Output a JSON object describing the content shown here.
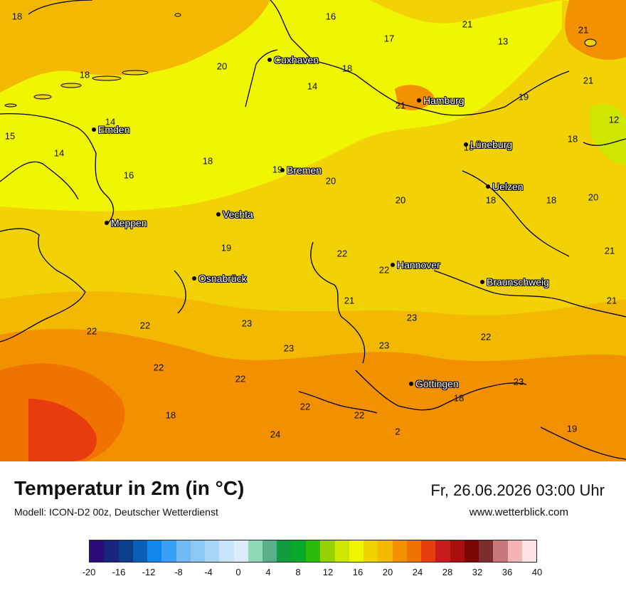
{
  "title": "Temperatur in 2m (in °C)",
  "subtitle": "Modell: ICON-D2 00z, Deutscher Wetterdienst",
  "datetime": "Fr, 26.06.2026 03:00 Uhr",
  "website": "www.wetterblick.com",
  "legend": {
    "colors": [
      "#2b0a7a",
      "#17267a",
      "#0a3d8a",
      "#0a5fb5",
      "#0d87ea",
      "#3aa0f5",
      "#6fb9f5",
      "#8dc8f5",
      "#a8d6f7",
      "#c9e5fa",
      "#dcecfb",
      "#8fd8b4",
      "#58b089",
      "#109c3c",
      "#08a82c",
      "#2bbb0e",
      "#96d304",
      "#cfe600",
      "#f0f500",
      "#f0d200",
      "#f2b900",
      "#f29000",
      "#f07300",
      "#e83c0e",
      "#c81c1c",
      "#a81010",
      "#7c0505",
      "#7d2d2d",
      "#c8777a",
      "#f2b3b3",
      "#fde2e6"
    ],
    "ticks": [
      "-20",
      "-16",
      "-12",
      "-8",
      "-4",
      "0",
      "4",
      "8",
      "12",
      "16",
      "20",
      "24",
      "28",
      "32",
      "36",
      "40"
    ]
  },
  "cities": [
    {
      "name": "Cuxhaven"
    },
    {
      "name": "Hamburg"
    },
    {
      "name": "Emden"
    },
    {
      "name": "Lüneburg"
    },
    {
      "name": "Bremen"
    },
    {
      "name": "Uelzen"
    },
    {
      "name": "Vechta"
    },
    {
      "name": "Meppen"
    },
    {
      "name": "Hannover"
    },
    {
      "name": "Osnabrück"
    },
    {
      "name": "Braunschweig"
    },
    {
      "name": "Göttingen"
    }
  ],
  "temps": [
    "18",
    "16",
    "21",
    "17",
    "21",
    "13",
    "18",
    "20",
    "14",
    "18",
    "21",
    "21",
    "19",
    "14",
    "12",
    "15",
    "14",
    "16",
    "18",
    "18",
    "19",
    "20",
    "18",
    "18",
    "18",
    "20",
    "20",
    "19",
    "21",
    "22",
    "22",
    "21",
    "21",
    "23",
    "22",
    "22",
    "23",
    "22",
    "23",
    "23",
    "22",
    "22",
    "23",
    "18",
    "22",
    "18",
    "22",
    "24",
    "2",
    "19"
  ]
}
